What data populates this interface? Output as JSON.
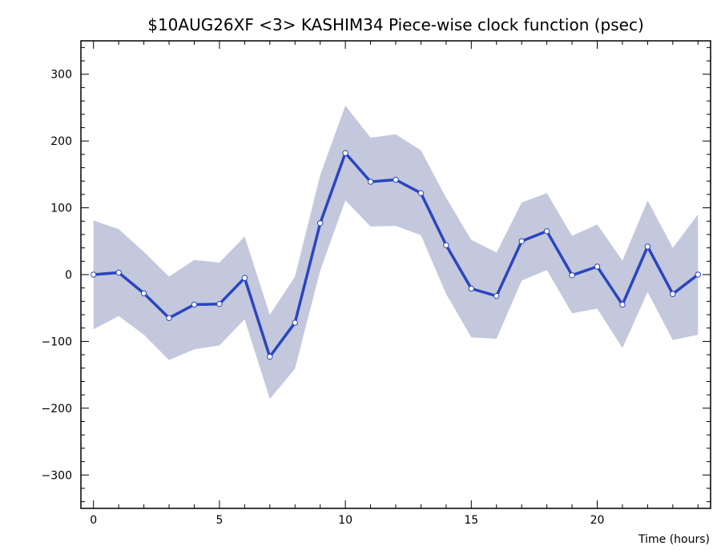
{
  "chart_data": {
    "type": "line",
    "title": "$10AUG26XF <3>  KASHIM34  Piece-wise clock function (psec)",
    "xlabel": "Time (hours)",
    "ylabel": "",
    "xlim": [
      -0.5,
      24.5
    ],
    "ylim": [
      -350,
      350
    ],
    "x_ticks": [
      0,
      5,
      10,
      15,
      20
    ],
    "y_ticks": [
      -300,
      -200,
      -100,
      0,
      100,
      200,
      300
    ],
    "x_tick_labels": [
      "0",
      "5",
      "10",
      "15",
      "20"
    ],
    "y_tick_labels": [
      "−300",
      "−200",
      "−100",
      "0",
      "100",
      "200",
      "300"
    ],
    "grid": false,
    "x": [
      0,
      1,
      2,
      3,
      4,
      5,
      6,
      7,
      8,
      9,
      10,
      11,
      12,
      13,
      14,
      15,
      16,
      17,
      18,
      19,
      20,
      21,
      22,
      23,
      24
    ],
    "series": [
      {
        "values": [
          0,
          3,
          -28,
          -65,
          -45,
          -44,
          -5,
          -123,
          -72,
          77,
          182,
          139,
          142,
          122,
          44,
          -21,
          -32,
          50,
          65,
          -1,
          12,
          -45,
          42,
          -29,
          0
        ],
        "upper": [
          81,
          68,
          34,
          -3,
          22,
          18,
          57,
          -60,
          -3,
          149,
          253,
          205,
          210,
          186,
          115,
          52,
          33,
          108,
          122,
          58,
          75,
          21,
          111,
          40,
          90
        ],
        "lower": [
          -82,
          -62,
          -90,
          -128,
          -112,
          -106,
          -67,
          -186,
          -141,
          6,
          111,
          72,
          73,
          59,
          -29,
          -94,
          -96,
          -9,
          7,
          -58,
          -51,
          -110,
          -26,
          -98,
          -90
        ],
        "color": "#2a45c0",
        "band_color": "#c3c8dc"
      }
    ]
  }
}
